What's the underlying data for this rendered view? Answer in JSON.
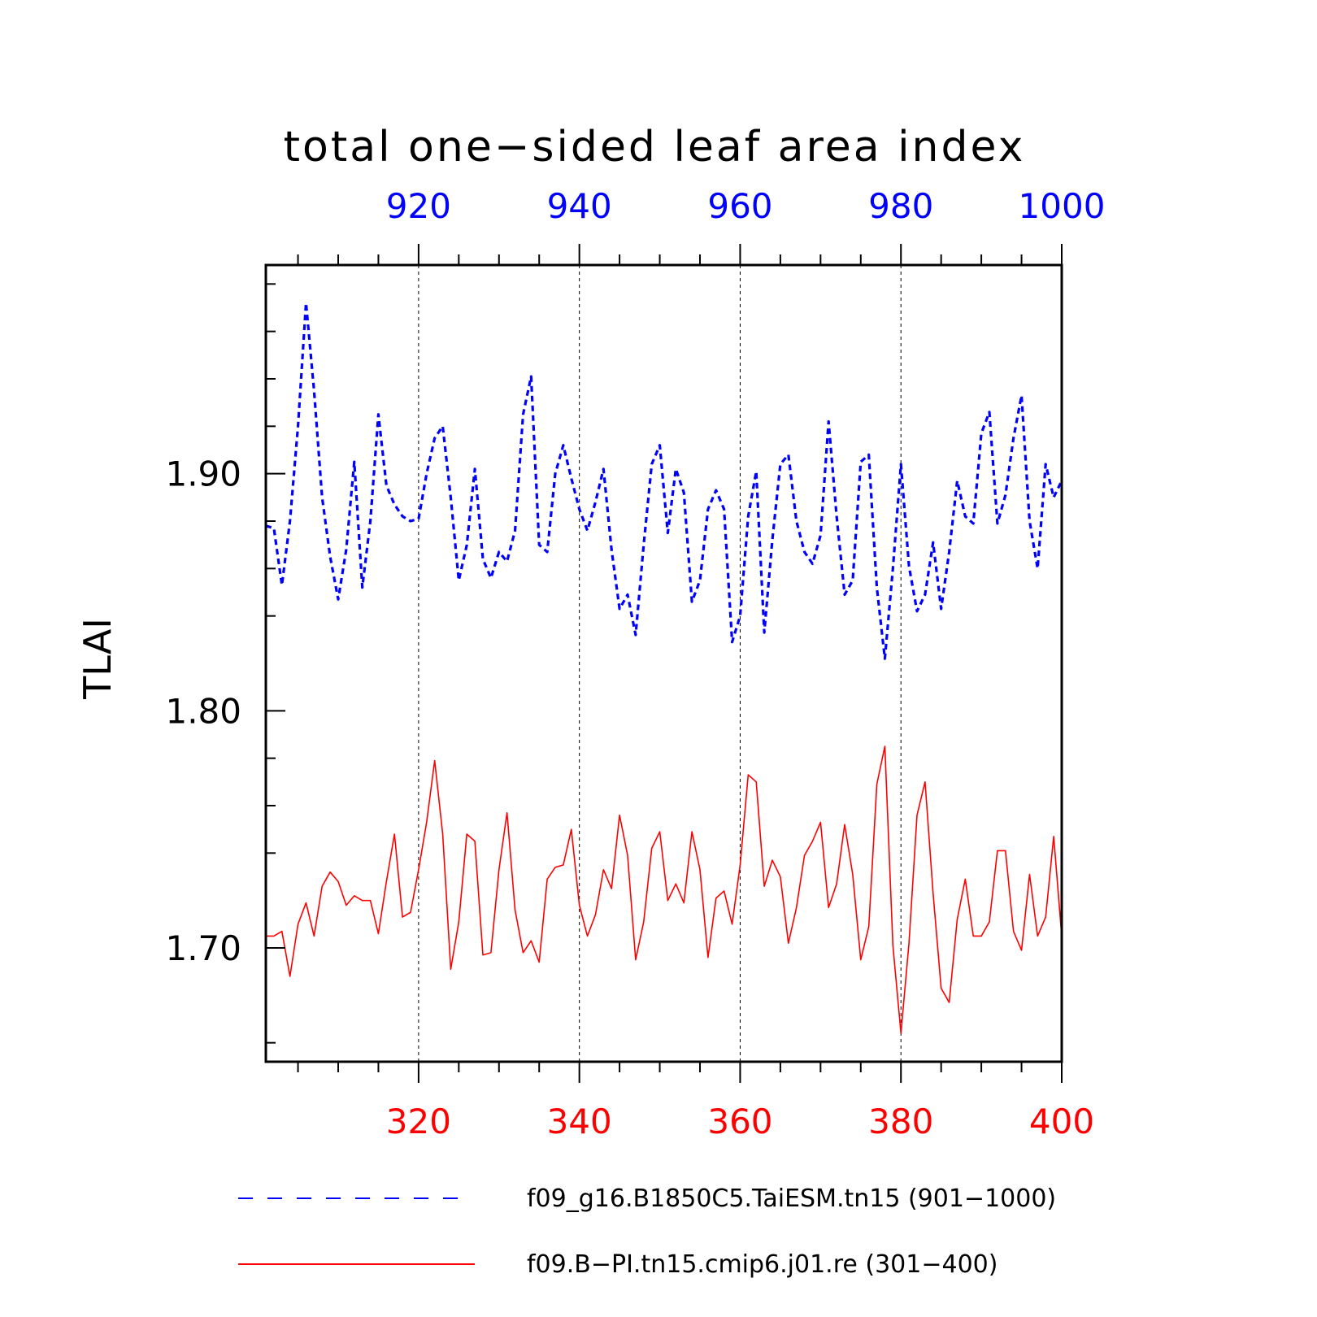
{
  "chart_data": {
    "type": "line",
    "title": "total one−sided leaf area index",
    "ylabel": "TLAI",
    "ylim": [
      1.652,
      1.988
    ],
    "yticks_major": [
      1.7,
      1.8,
      1.9
    ],
    "ytick_labels": [
      "1.70",
      "1.80",
      "1.90"
    ],
    "yticks_minor": [
      1.66,
      1.74,
      1.76,
      1.78,
      1.84,
      1.86,
      1.88,
      1.92,
      1.94,
      1.96,
      1.98
    ],
    "top_axis": {
      "range": [
        901,
        1000
      ],
      "major_ticks": [
        920,
        940,
        960,
        980,
        1000
      ],
      "labels": [
        "920",
        "940",
        "960",
        "980",
        "1000"
      ],
      "color": "#0000ff"
    },
    "bottom_axis": {
      "range": [
        301,
        400
      ],
      "major_ticks": [
        320,
        340,
        360,
        380,
        400
      ],
      "labels": [
        "320",
        "340",
        "360",
        "380",
        "400"
      ],
      "color": "#ff0000"
    },
    "vertical_gridlines_at": [
      320,
      340,
      360,
      380
    ],
    "legend_position": "bottom",
    "series": [
      {
        "name": "f09_g16.B1850C5.TaiESM.tn15 (901−1000)",
        "axis": "top",
        "color": "#0000ff",
        "style": "dashed",
        "x_start": 901,
        "values": [
          1.878,
          1.877,
          1.853,
          1.88,
          1.92,
          1.972,
          1.935,
          1.89,
          1.865,
          1.847,
          1.868,
          1.905,
          1.852,
          1.88,
          1.925,
          1.895,
          1.887,
          1.882,
          1.88,
          1.881,
          1.9,
          1.915,
          1.92,
          1.89,
          1.855,
          1.87,
          1.902,
          1.864,
          1.856,
          1.867,
          1.863,
          1.876,
          1.925,
          1.941,
          1.87,
          1.867,
          1.9,
          1.912,
          1.898,
          1.885,
          1.876,
          1.888,
          1.902,
          1.868,
          1.843,
          1.849,
          1.832,
          1.87,
          1.904,
          1.912,
          1.875,
          1.902,
          1.892,
          1.846,
          1.855,
          1.885,
          1.893,
          1.885,
          1.829,
          1.84,
          1.882,
          1.901,
          1.833,
          1.872,
          1.904,
          1.908,
          1.88,
          1.867,
          1.862,
          1.874,
          1.922,
          1.882,
          1.849,
          1.855,
          1.905,
          1.908,
          1.852,
          1.822,
          1.86,
          1.904,
          1.861,
          1.842,
          1.849,
          1.871,
          1.843,
          1.867,
          1.897,
          1.882,
          1.879,
          1.917,
          1.926,
          1.879,
          1.891,
          1.915,
          1.933,
          1.88,
          1.86,
          1.904,
          1.89,
          1.897
        ]
      },
      {
        "name": "f09.B−PI.tn15.cmip6.j01.re (301−400)",
        "axis": "bottom",
        "color": "#ff0000",
        "style": "solid",
        "x_start": 301,
        "values": [
          1.705,
          1.705,
          1.707,
          1.688,
          1.71,
          1.719,
          1.705,
          1.726,
          1.732,
          1.728,
          1.718,
          1.722,
          1.72,
          1.72,
          1.706,
          1.728,
          1.748,
          1.713,
          1.715,
          1.733,
          1.753,
          1.779,
          1.748,
          1.691,
          1.711,
          1.748,
          1.745,
          1.697,
          1.698,
          1.733,
          1.757,
          1.716,
          1.698,
          1.703,
          1.694,
          1.729,
          1.734,
          1.735,
          1.75,
          1.718,
          1.705,
          1.714,
          1.733,
          1.725,
          1.756,
          1.739,
          1.695,
          1.711,
          1.742,
          1.749,
          1.72,
          1.727,
          1.719,
          1.749,
          1.733,
          1.696,
          1.721,
          1.724,
          1.71,
          1.735,
          1.773,
          1.77,
          1.726,
          1.737,
          1.73,
          1.702,
          1.717,
          1.739,
          1.745,
          1.753,
          1.717,
          1.727,
          1.752,
          1.731,
          1.695,
          1.709,
          1.769,
          1.785,
          1.701,
          1.664,
          1.702,
          1.756,
          1.77,
          1.723,
          1.683,
          1.677,
          1.712,
          1.729,
          1.705,
          1.705,
          1.711,
          1.741,
          1.741,
          1.707,
          1.699,
          1.731,
          1.705,
          1.713,
          1.747,
          1.705
        ]
      }
    ]
  }
}
